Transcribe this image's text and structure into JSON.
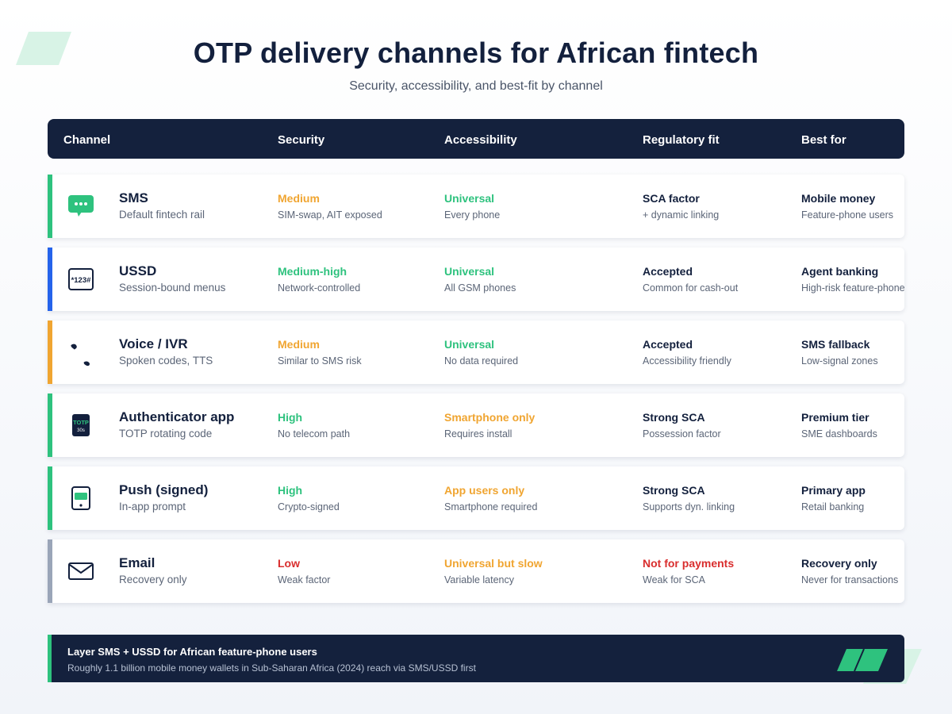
{
  "page": {
    "title": "OTP delivery channels for African fintech",
    "subtitle": "Security, accessibility, and best-fit by channel"
  },
  "colors": {
    "navy": "#14213d",
    "green": "#2ec27e",
    "orange": "#f0a531",
    "red": "#d92d2d",
    "blue": "#2563eb",
    "gray": "#9aa5b8"
  },
  "table": {
    "headers": {
      "channel": "Channel",
      "security": "Security",
      "accessibility": "Accessibility",
      "regulatory": "Regulatory fit",
      "best": "Best for"
    },
    "rows": [
      {
        "icon": "sms-bubble-icon",
        "accent": "#2ec27e",
        "name": "SMS",
        "desc": "Default fintech rail",
        "security": "Medium",
        "security_note": "SIM-swap, AIT exposed",
        "security_color": "#f0a531",
        "access": "Universal",
        "access_note": "Every phone",
        "access_color": "#2ec27e",
        "reg": "SCA factor",
        "reg_note": "+ dynamic linking",
        "reg_color": "#13203d",
        "best": "Mobile money",
        "best_note": "Feature-phone users"
      },
      {
        "icon": "ussd-code-icon",
        "icon_text": "*123#",
        "accent": "#2563eb",
        "name": "USSD",
        "desc": "Session-bound menus",
        "security": "Medium-high",
        "security_note": "Network-controlled",
        "security_color": "#2ec27e",
        "access": "Universal",
        "access_note": "All GSM phones",
        "access_color": "#2ec27e",
        "reg": "Accepted",
        "reg_note": "Common for cash-out",
        "reg_color": "#13203d",
        "best": "Agent banking",
        "best_note": "High-risk feature-phone"
      },
      {
        "icon": "phone-handset-icon",
        "accent": "#f0a531",
        "name": "Voice / IVR",
        "desc": "Spoken codes, TTS",
        "security": "Medium",
        "security_note": "Similar to SMS risk",
        "security_color": "#f0a531",
        "access": "Universal",
        "access_note": "No data required",
        "access_color": "#2ec27e",
        "reg": "Accepted",
        "reg_note": "Accessibility friendly",
        "reg_color": "#13203d",
        "best": "SMS fallback",
        "best_note": "Low-signal zones"
      },
      {
        "icon": "totp-app-icon",
        "icon_text": "TOTP",
        "icon_text2": "30s",
        "accent": "#2ec27e",
        "name": "Authenticator app",
        "desc": "TOTP rotating code",
        "security": "High",
        "security_note": "No telecom path",
        "security_color": "#2ec27e",
        "access": "Smartphone only",
        "access_note": "Requires install",
        "access_color": "#f0a531",
        "reg": "Strong SCA",
        "reg_note": "Possession factor",
        "reg_color": "#13203d",
        "best": "Premium tier",
        "best_note": "SME dashboards"
      },
      {
        "icon": "push-phone-icon",
        "accent": "#2ec27e",
        "name": "Push (signed)",
        "desc": "In-app prompt",
        "security": "High",
        "security_note": "Crypto-signed",
        "security_color": "#2ec27e",
        "access": "App users only",
        "access_note": "Smartphone required",
        "access_color": "#f0a531",
        "reg": "Strong SCA",
        "reg_note": "Supports dyn. linking",
        "reg_color": "#13203d",
        "best": "Primary app",
        "best_note": "Retail banking"
      },
      {
        "icon": "email-envelope-icon",
        "accent": "#9aa5b8",
        "name": "Email",
        "desc": "Recovery only",
        "security": "Low",
        "security_note": "Weak factor",
        "security_color": "#d92d2d",
        "access": "Universal but slow",
        "access_note": "Variable latency",
        "access_color": "#f0a531",
        "reg": "Not for payments",
        "reg_note": "Weak for SCA",
        "reg_color": "#d92d2d",
        "best": "Recovery only",
        "best_note": "Never for transactions"
      }
    ]
  },
  "footer": {
    "title": "Layer SMS + USSD for African feature-phone users",
    "subtitle": "Roughly 1.1 billion mobile money wallets in Sub-Saharan Africa (2024) reach via SMS/USSD first"
  }
}
